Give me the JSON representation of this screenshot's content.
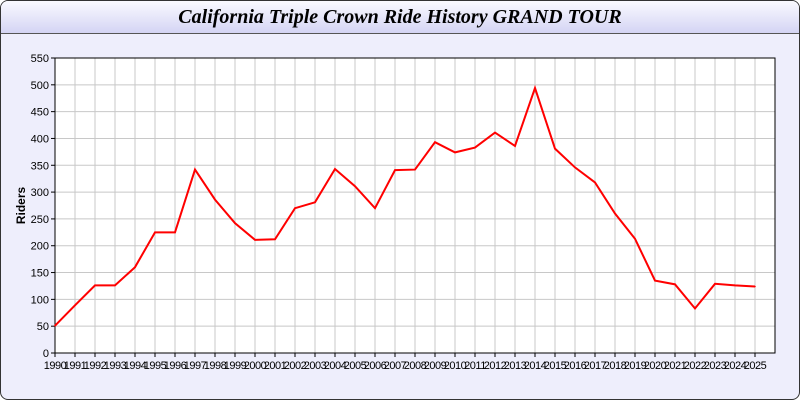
{
  "chart_data": {
    "type": "line",
    "title": "California Triple Crown Ride History GRAND TOUR",
    "xlabel": "",
    "ylabel": "Riders",
    "ylim": [
      0,
      550
    ],
    "yticks": [
      0,
      50,
      100,
      150,
      200,
      250,
      300,
      350,
      400,
      450,
      500,
      550
    ],
    "grid": true,
    "line_color": "#ff0000",
    "x": [
      1990,
      1991,
      1992,
      1993,
      1994,
      1995,
      1996,
      1997,
      1998,
      1999,
      2000,
      2001,
      2002,
      2003,
      2004,
      2005,
      2006,
      2007,
      2008,
      2009,
      2010,
      2011,
      2012,
      2013,
      2014,
      2015,
      2016,
      2017,
      2018,
      2019,
      2020,
      2021,
      2022,
      2023,
      2024,
      2025
    ],
    "values": [
      51,
      89,
      126,
      126,
      160,
      225,
      225,
      342,
      286,
      242,
      211,
      212,
      270,
      281,
      343,
      311,
      270,
      341,
      342,
      393,
      374,
      383,
      411,
      386,
      494,
      381,
      346,
      318,
      260,
      213,
      135,
      128,
      83,
      129,
      126,
      124
    ]
  }
}
